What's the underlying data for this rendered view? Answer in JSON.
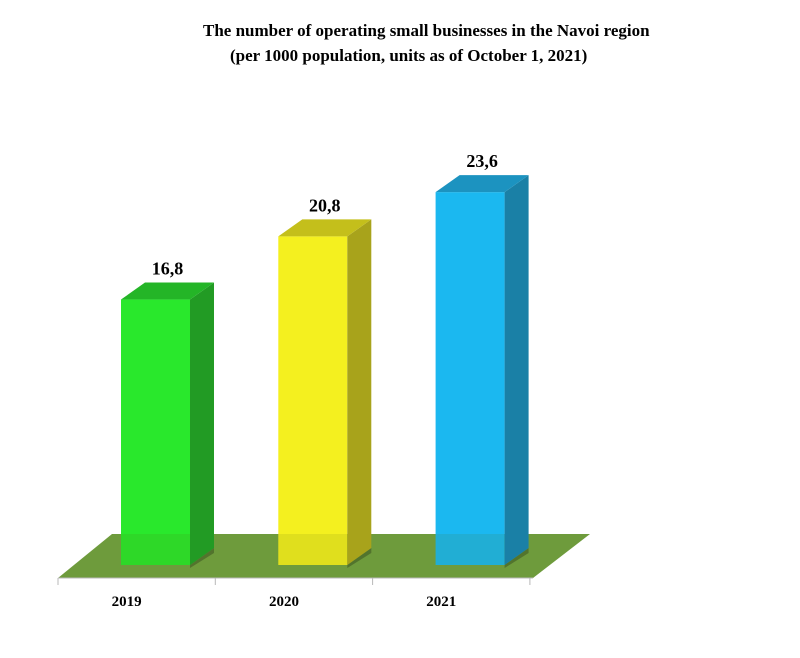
{
  "chart_data": {
    "type": "bar",
    "title": "The number of operating  small businesses in the Navoi region",
    "subtitle": "(per 1000 population, units as of October 1, 2021)",
    "categories": [
      "2019",
      "2020",
      "2021"
    ],
    "values": [
      16.8,
      20.8,
      23.6
    ],
    "data_labels": [
      "16,8",
      "20,8",
      "23,6"
    ],
    "xlabel": "",
    "ylabel": "",
    "ylim": [
      0,
      25
    ],
    "grid": false,
    "legend": "none",
    "style": "3d-column",
    "colors": {
      "bars": [
        "#29e82c",
        "#f4f01f",
        "#1bb8f0"
      ],
      "bar_sides": [
        "#229b24",
        "#a8a31b",
        "#1a80a6"
      ],
      "bar_tops": [
        "#24b527",
        "#c4bf1b",
        "#1c93c0"
      ],
      "floor": "#6e9b3c"
    }
  }
}
